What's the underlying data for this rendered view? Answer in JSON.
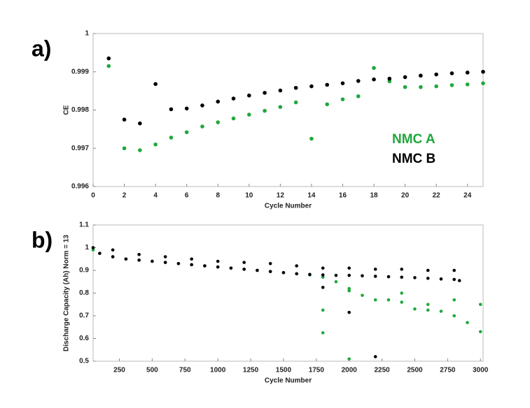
{
  "chart_data": [
    {
      "type": "scatter",
      "panel_label": "a)",
      "xlabel": "Cycle Number",
      "ylabel": "CE",
      "x": [
        1,
        2,
        3,
        4,
        5,
        6,
        7,
        8,
        9,
        10,
        11,
        12,
        13,
        14,
        15,
        16,
        17,
        18,
        19,
        20,
        21,
        22,
        23,
        24,
        25
      ],
      "series": [
        {
          "name": "NMC A",
          "color": "#1fa83c",
          "values": [
            0.99915,
            0.997,
            0.99695,
            0.9971,
            0.99728,
            0.99742,
            0.99757,
            0.99768,
            0.99778,
            0.99788,
            0.99798,
            0.99808,
            0.9982,
            0.99725,
            0.99815,
            0.99828,
            0.99836,
            0.9991,
            0.99875,
            0.9986,
            0.9986,
            0.99862,
            0.99865,
            0.99867,
            0.9987
          ]
        },
        {
          "name": "NMC B",
          "color": "#000000",
          "values": [
            0.99935,
            0.99775,
            0.99765,
            0.99868,
            0.99802,
            0.99804,
            0.99812,
            0.99822,
            0.9983,
            0.99838,
            0.99845,
            0.99851,
            0.99858,
            0.99862,
            0.99866,
            0.9987,
            0.99876,
            0.9988,
            0.99882,
            0.99886,
            0.9989,
            0.99893,
            0.99896,
            0.99898,
            0.999
          ]
        }
      ],
      "xlim": [
        0,
        25
      ],
      "xticks": [
        0,
        2,
        4,
        6,
        8,
        10,
        12,
        14,
        16,
        18,
        20,
        22,
        24
      ],
      "ylim": [
        0.996,
        1
      ],
      "yticks": [
        0.996,
        0.997,
        0.998,
        0.999,
        1
      ]
    },
    {
      "type": "scatter",
      "panel_label": "b)",
      "xlabel": "Cycle Number",
      "ylabel": "Discharge Capacity (Ah) Norm = 13",
      "series": [
        {
          "color": "#1fa83c",
          "x": [
            50,
            100,
            200,
            300,
            400,
            500,
            600,
            700,
            800,
            900,
            1000,
            1100,
            1200,
            1300,
            1400,
            1500,
            1600,
            1700,
            1800,
            1900,
            2000,
            2100,
            2200,
            2300,
            2400,
            2500,
            2600,
            2700,
            2800,
            2900,
            3000,
            1800,
            1800,
            2000,
            2000,
            2400,
            2600,
            2800,
            3000
          ],
          "values": [
            0.99,
            0.975,
            0.96,
            0.95,
            0.945,
            0.94,
            0.935,
            0.93,
            0.925,
            0.92,
            0.915,
            0.91,
            0.905,
            0.9,
            0.895,
            0.89,
            0.885,
            0.88,
            0.87,
            0.85,
            0.81,
            0.79,
            0.77,
            0.77,
            0.76,
            0.73,
            0.725,
            0.72,
            0.7,
            0.67,
            0.63,
            0.625,
            0.725,
            0.51,
            0.82,
            0.8,
            0.75,
            0.77,
            0.75
          ]
        },
        {
          "color": "#000000",
          "x": [
            50,
            100,
            200,
            300,
            400,
            500,
            600,
            700,
            800,
            900,
            1000,
            1100,
            1200,
            1300,
            1400,
            1500,
            1600,
            1700,
            1800,
            1900,
            2000,
            2100,
            2200,
            2300,
            2400,
            2500,
            2600,
            2700,
            2800,
            2840,
            1800,
            2000,
            2200,
            200,
            400,
            600,
            800,
            1000,
            1200,
            1400,
            1600,
            1800,
            2000,
            2200,
            2400,
            2600,
            2800
          ],
          "values": [
            1.0,
            0.975,
            0.96,
            0.95,
            0.945,
            0.94,
            0.935,
            0.93,
            0.925,
            0.92,
            0.915,
            0.91,
            0.905,
            0.9,
            0.895,
            0.89,
            0.885,
            0.882,
            0.88,
            0.878,
            0.878,
            0.876,
            0.874,
            0.872,
            0.87,
            0.868,
            0.865,
            0.862,
            0.86,
            0.855,
            0.825,
            0.715,
            0.52,
            0.99,
            0.97,
            0.96,
            0.95,
            0.94,
            0.935,
            0.93,
            0.92,
            0.91,
            0.91,
            0.905,
            0.905,
            0.9,
            0.9
          ]
        }
      ],
      "xlim": [
        50,
        3020
      ],
      "xticks": [
        250,
        500,
        750,
        1000,
        1250,
        1500,
        1750,
        2000,
        2250,
        2500,
        2750,
        3000
      ],
      "ylim": [
        0.5,
        1.1
      ],
      "yticks": [
        0.5,
        0.6,
        0.7,
        0.8,
        0.9,
        1,
        1.1
      ]
    }
  ]
}
